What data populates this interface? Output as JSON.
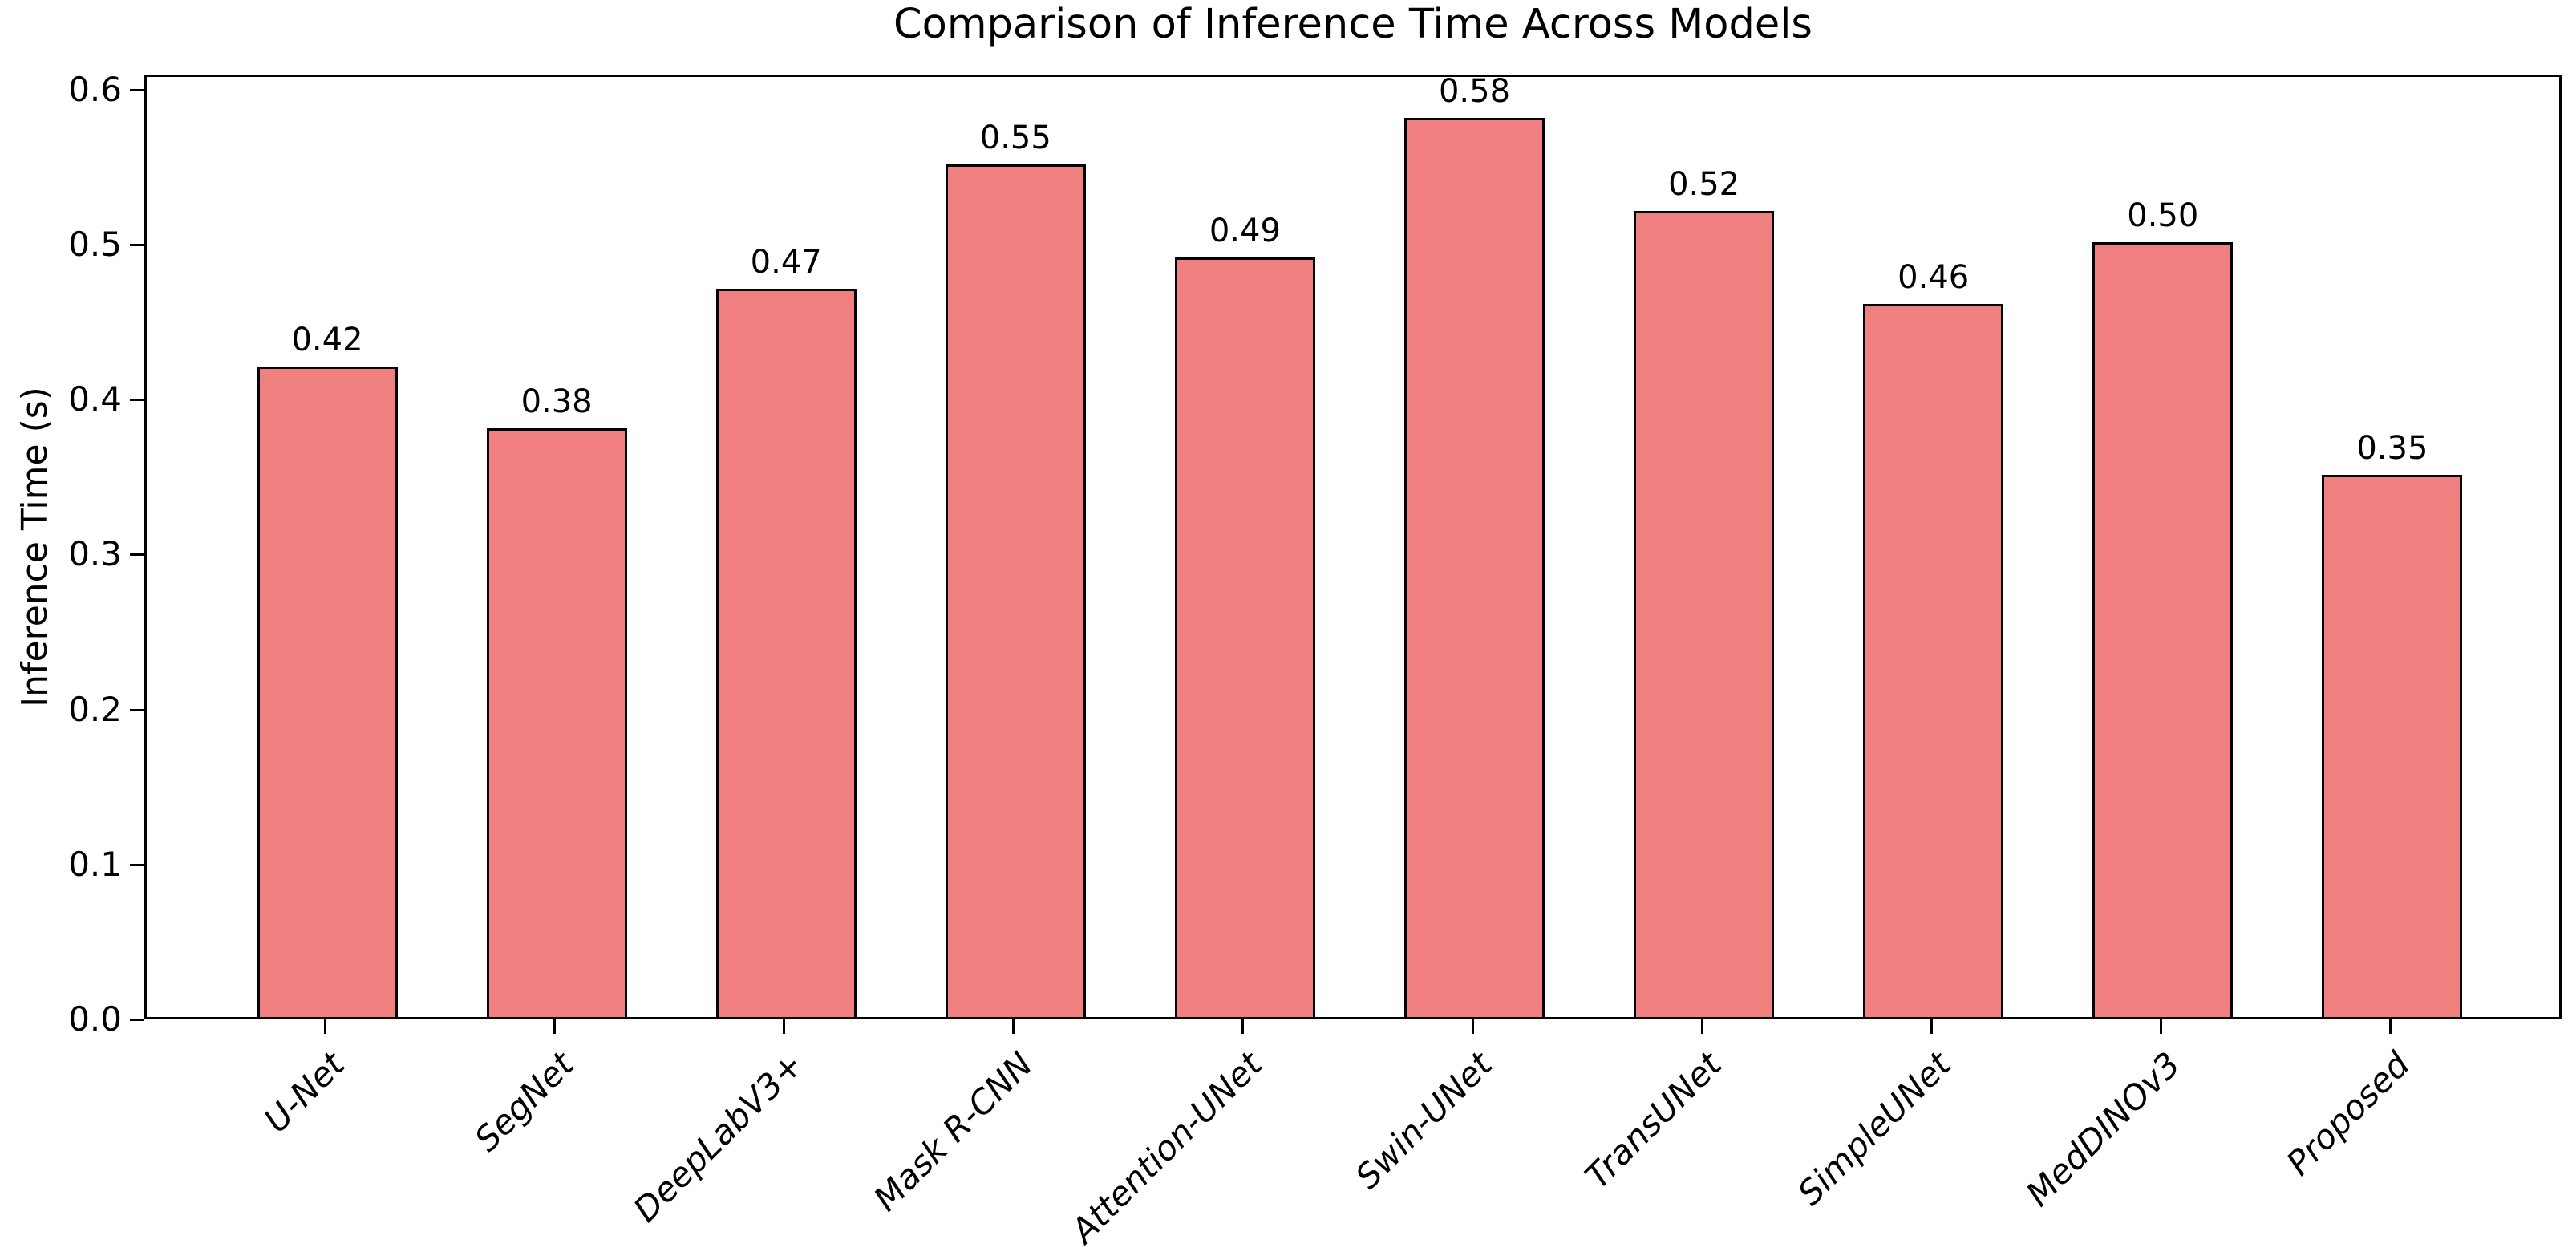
{
  "figure": {
    "title": "Comparison of Inference Time Across Models",
    "ylabel": "Inference Time (s)"
  },
  "chart_data": {
    "type": "bar",
    "title": "Comparison of Inference Time Across Models",
    "xlabel": "",
    "ylabel": "Inference Time (s)",
    "categories": [
      "U-Net",
      "SegNet",
      "DeepLabV3+",
      "Mask R-CNN",
      "Attention-UNet",
      "Swin-UNet",
      "TransUNet",
      "SimpleUNet",
      "MedDINOv3",
      "Proposed"
    ],
    "values": [
      0.42,
      0.38,
      0.47,
      0.55,
      0.49,
      0.58,
      0.52,
      0.46,
      0.5,
      0.35
    ],
    "value_labels": [
      "0.42",
      "0.38",
      "0.47",
      "0.55",
      "0.49",
      "0.58",
      "0.52",
      "0.46",
      "0.50",
      "0.35"
    ],
    "yticks": [
      "0.0",
      "0.1",
      "0.2",
      "0.3",
      "0.4",
      "0.5",
      "0.6"
    ],
    "ylim": [
      0.0,
      0.61
    ],
    "grid": false,
    "legend": false,
    "bar_color": "#F08080",
    "bar_edge_color": "#000000",
    "text_color": "#000000"
  }
}
